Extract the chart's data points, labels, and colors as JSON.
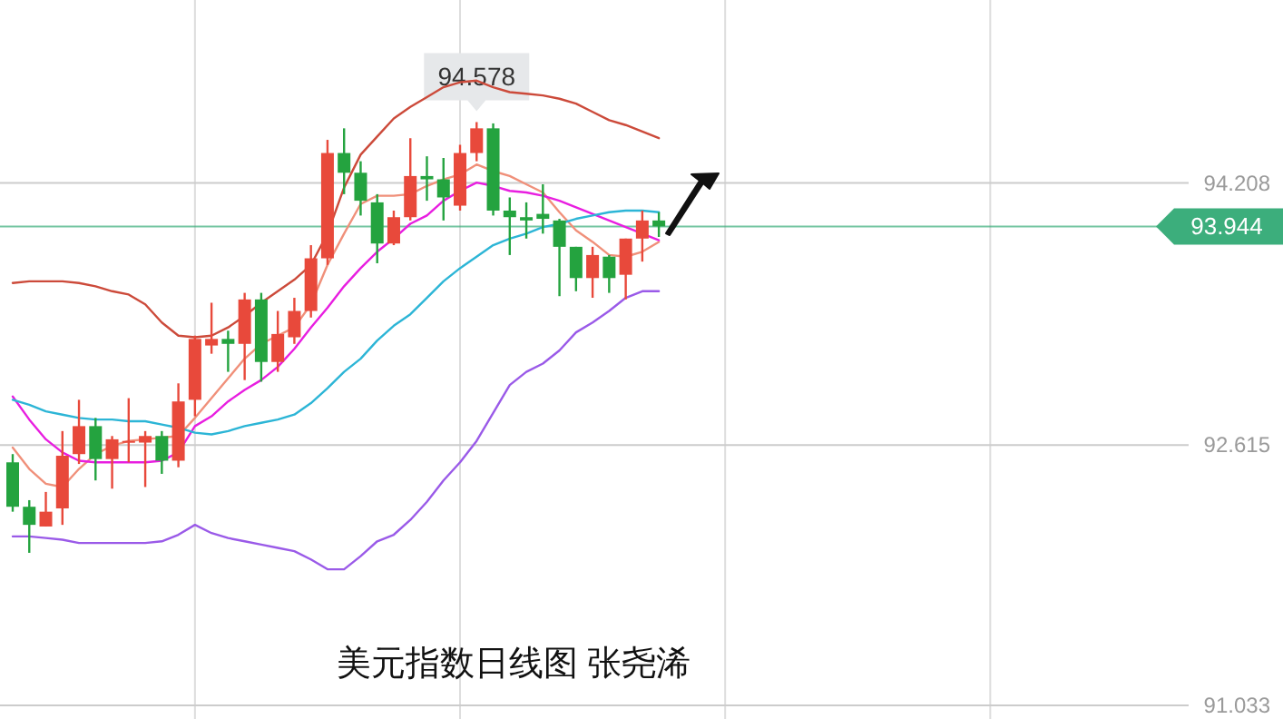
{
  "chart_data": {
    "type": "candlestick",
    "categories": [
      null,
      null,
      null,
      null,
      null,
      null,
      null,
      null,
      null,
      null,
      null,
      null,
      null,
      null,
      null,
      null,
      null,
      null,
      null,
      null,
      null,
      null,
      null,
      null,
      null,
      null,
      null,
      null,
      null,
      null,
      null,
      null,
      null,
      null,
      null,
      null,
      null,
      null,
      null,
      null
    ],
    "ohlc": [
      [
        92.51,
        92.56,
        92.21,
        92.24
      ],
      [
        92.24,
        92.28,
        91.96,
        92.13
      ],
      [
        92.12,
        92.33,
        92.12,
        92.21
      ],
      [
        92.23,
        92.7,
        92.13,
        92.55
      ],
      [
        92.56,
        92.89,
        92.5,
        92.73
      ],
      [
        92.73,
        92.78,
        92.4,
        92.53
      ],
      [
        92.53,
        92.67,
        92.35,
        92.65
      ],
      [
        92.63,
        92.9,
        92.51,
        92.64
      ],
      [
        92.63,
        92.7,
        92.36,
        92.67
      ],
      [
        92.67,
        92.7,
        92.44,
        92.52
      ],
      [
        92.52,
        92.99,
        92.48,
        92.88
      ],
      [
        92.89,
        93.28,
        92.79,
        93.26
      ],
      [
        93.22,
        93.48,
        93.17,
        93.26
      ],
      [
        93.26,
        93.31,
        93.06,
        93.23
      ],
      [
        93.23,
        93.54,
        93.01,
        93.5
      ],
      [
        93.5,
        93.54,
        93.0,
        93.12
      ],
      [
        93.12,
        93.43,
        93.06,
        93.29
      ],
      [
        93.27,
        93.51,
        93.23,
        93.43
      ],
      [
        93.43,
        93.83,
        93.39,
        93.75
      ],
      [
        93.75,
        94.47,
        93.71,
        94.39
      ],
      [
        94.39,
        94.54,
        94.14,
        94.27
      ],
      [
        94.27,
        94.34,
        94.01,
        94.1
      ],
      [
        94.09,
        94.14,
        93.72,
        93.84
      ],
      [
        93.84,
        94.04,
        93.83,
        94.0
      ],
      [
        94.0,
        94.48,
        93.98,
        94.25
      ],
      [
        94.25,
        94.37,
        94.1,
        94.23
      ],
      [
        94.23,
        94.36,
        93.98,
        94.12
      ],
      [
        94.07,
        94.44,
        94.04,
        94.39
      ],
      [
        94.39,
        94.578,
        94.34,
        94.54
      ],
      [
        94.54,
        94.57,
        94.01,
        94.04
      ],
      [
        94.04,
        94.12,
        93.77,
        94.0
      ],
      [
        94.0,
        94.09,
        93.87,
        93.98
      ],
      [
        94.02,
        94.2,
        93.9,
        93.99
      ],
      [
        93.98,
        93.99,
        93.52,
        93.82
      ],
      [
        93.82,
        93.82,
        93.55,
        93.63
      ],
      [
        93.63,
        93.82,
        93.51,
        93.77
      ],
      [
        93.76,
        93.77,
        93.54,
        93.63
      ],
      [
        93.65,
        93.87,
        93.5,
        93.87
      ],
      [
        93.87,
        94.04,
        93.73,
        93.98
      ],
      [
        93.98,
        94.03,
        93.88,
        93.944
      ]
    ],
    "colors": [
      "#24a33f",
      "#24a33f",
      "#e8493b",
      "#e8493b",
      "#e8493b",
      "#24a33f",
      "#e8493b",
      "#e8493b",
      "#e8493b",
      "#24a33f",
      "#e8493b",
      "#e8493b",
      "#e8493b",
      "#24a33f",
      "#e8493b",
      "#24a33f",
      "#e8493b",
      "#e8493b",
      "#e8493b",
      "#e8493b",
      "#24a33f",
      "#24a33f",
      "#24a33f",
      "#e8493b",
      "#e8493b",
      "#24a33f",
      "#24a33f",
      "#e8493b",
      "#e8493b",
      "#24a33f",
      "#24a33f",
      "#24a33f",
      "#24a33f",
      "#24a33f",
      "#24a33f",
      "#e8493b",
      "#24a33f",
      "#e8493b",
      "#e8493b",
      "#24a33f"
    ],
    "series": [
      {
        "type": "line",
        "color": "#cc4a3a",
        "values": [
          93.6,
          93.61,
          93.61,
          93.61,
          93.6,
          93.58,
          93.55,
          93.53,
          93.47,
          93.36,
          93.28,
          93.27,
          93.28,
          93.33,
          93.4,
          93.48,
          93.55,
          93.62,
          93.71,
          93.9,
          94.18,
          94.38,
          94.49,
          94.6,
          94.67,
          94.73,
          94.79,
          94.82,
          94.83,
          94.79,
          94.76,
          94.75,
          94.74,
          94.72,
          94.69,
          94.64,
          94.59,
          94.56,
          94.52,
          94.48
        ]
      },
      {
        "type": "line",
        "color": "#f0907a",
        "values": [
          92.6,
          92.47,
          92.38,
          92.36,
          92.47,
          92.56,
          92.61,
          92.64,
          92.65,
          92.66,
          92.67,
          92.78,
          92.9,
          93.02,
          93.14,
          93.23,
          93.28,
          93.33,
          93.47,
          93.71,
          93.9,
          94.08,
          94.13,
          94.13,
          94.14,
          94.19,
          94.23,
          94.26,
          94.32,
          94.28,
          94.25,
          94.2,
          94.15,
          94.03,
          93.92,
          93.85,
          93.77,
          93.76,
          93.79,
          93.85
        ]
      },
      {
        "type": "line",
        "color": "#e81ee0",
        "values": [
          92.91,
          92.77,
          92.65,
          92.57,
          92.52,
          92.51,
          92.51,
          92.51,
          92.51,
          92.52,
          92.57,
          92.73,
          92.79,
          92.88,
          92.95,
          93.01,
          93.09,
          93.2,
          93.33,
          93.45,
          93.58,
          93.69,
          93.79,
          93.87,
          93.96,
          94.01,
          94.1,
          94.16,
          94.21,
          94.19,
          94.16,
          94.15,
          94.13,
          94.1,
          94.06,
          94.02,
          93.98,
          93.94,
          93.9,
          93.86
        ]
      },
      {
        "type": "line",
        "color": "#2cb5d6",
        "values": [
          92.89,
          92.86,
          92.82,
          92.8,
          92.78,
          92.77,
          92.77,
          92.76,
          92.76,
          92.74,
          92.72,
          92.69,
          92.68,
          92.7,
          92.73,
          92.75,
          92.77,
          92.8,
          92.87,
          92.96,
          93.06,
          93.14,
          93.25,
          93.34,
          93.41,
          93.51,
          93.61,
          93.69,
          93.76,
          93.83,
          93.87,
          93.9,
          93.94,
          93.96,
          93.99,
          94.01,
          94.03,
          94.04,
          94.04,
          94.03
        ]
      },
      {
        "type": "line",
        "color": "#9a5ae8",
        "values": [
          92.06,
          92.06,
          92.05,
          92.04,
          92.02,
          92.02,
          92.02,
          92.02,
          92.02,
          92.03,
          92.07,
          92.13,
          92.08,
          92.05,
          92.03,
          92.01,
          91.99,
          91.97,
          91.92,
          91.86,
          91.86,
          91.94,
          92.03,
          92.07,
          92.16,
          92.27,
          92.4,
          92.51,
          92.64,
          92.81,
          92.98,
          93.06,
          93.11,
          93.19,
          93.3,
          93.36,
          93.43,
          93.51,
          93.55,
          93.55
        ]
      }
    ],
    "ylim": [
      90.95,
      95.32
    ],
    "yticks": [
      94.208,
      92.615,
      91.033
    ],
    "grid": true,
    "ref_lines": [
      {
        "axis": "y",
        "value": 93.944,
        "label": "93.944",
        "color": "#3cae7c"
      }
    ],
    "annotations": [
      {
        "text": "94.578",
        "y": 94.578
      },
      "美元指数日线图  张尧浠"
    ]
  }
}
